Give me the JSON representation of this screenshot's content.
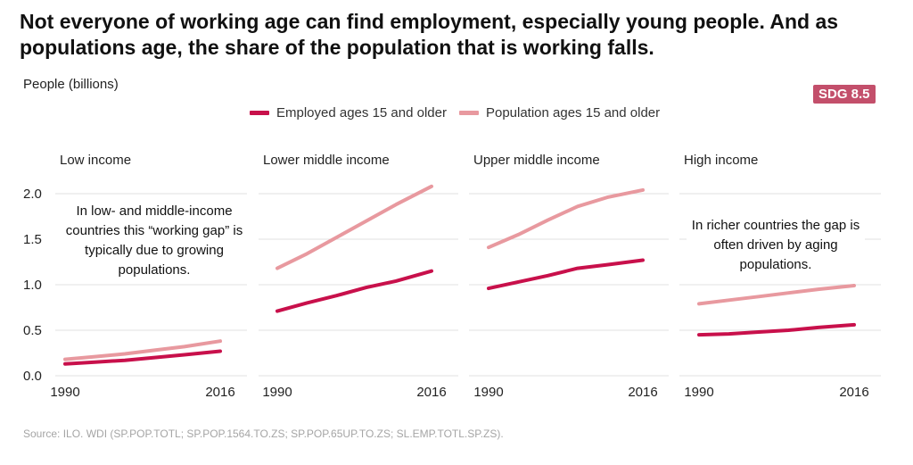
{
  "header": {
    "title": "Not everyone of working age can find employment, especially young people. And as populations age, the share of the population that is working falls.",
    "unit_label": "People (billions)",
    "badge": "SDG 8.5"
  },
  "colors": {
    "employed": "#c8104b",
    "population": "#e8999f",
    "grid": "#e0e0e0",
    "badge": "#c34f6b"
  },
  "source": "Source: ILO. WDI (SP.POP.TOTL; SP.POP.1564.TO.ZS; SP.POP.65UP.TO.ZS; SL.EMP.TOTL.SP.ZS).",
  "notes": {
    "left": "In low- and middle-income countries this “working gap” is typically due to growing populations.",
    "right": "In richer countries the gap is often driven by aging populations."
  },
  "chart_data": {
    "type": "line",
    "ylabel": "People (billions)",
    "ylim": [
      0,
      2.1
    ],
    "yticks": [
      "0.0",
      "0.5",
      "1.0",
      "1.5",
      "2.0"
    ],
    "xticks": [
      "1990",
      "2016"
    ],
    "legend": {
      "placement": "top",
      "series_names": [
        "Employed ages 15 and older",
        "Population ages 15 and older"
      ]
    },
    "grid": true,
    "panels": [
      {
        "title": "Low income",
        "x": [
          1990,
          1995,
          2000,
          2005,
          2010,
          2016
        ],
        "series": [
          {
            "name": "Employed ages 15 and older",
            "values": [
              0.13,
              0.15,
              0.17,
              0.2,
              0.23,
              0.27
            ]
          },
          {
            "name": "Population ages 15 and older",
            "values": [
              0.18,
              0.21,
              0.24,
              0.28,
              0.32,
              0.38
            ]
          }
        ]
      },
      {
        "title": "Lower middle income",
        "x": [
          1990,
          1995,
          2000,
          2005,
          2010,
          2016
        ],
        "series": [
          {
            "name": "Employed ages 15 and older",
            "values": [
              0.71,
              0.8,
              0.88,
              0.97,
              1.04,
              1.15
            ]
          },
          {
            "name": "Population ages 15 and older",
            "values": [
              1.18,
              1.34,
              1.52,
              1.7,
              1.88,
              2.08
            ]
          }
        ]
      },
      {
        "title": "Upper middle income",
        "x": [
          1990,
          1995,
          2000,
          2005,
          2010,
          2016
        ],
        "series": [
          {
            "name": "Employed ages 15 and older",
            "values": [
              0.96,
              1.03,
              1.1,
              1.18,
              1.22,
              1.27
            ]
          },
          {
            "name": "Population ages 15 and older",
            "values": [
              1.41,
              1.55,
              1.71,
              1.86,
              1.96,
              2.04
            ]
          }
        ]
      },
      {
        "title": "High income",
        "x": [
          1990,
          1995,
          2000,
          2005,
          2010,
          2016
        ],
        "series": [
          {
            "name": "Employed ages 15 and older",
            "values": [
              0.45,
              0.46,
              0.48,
              0.5,
              0.53,
              0.56
            ]
          },
          {
            "name": "Population ages 15 and older",
            "values": [
              0.79,
              0.83,
              0.87,
              0.91,
              0.95,
              0.99
            ]
          }
        ]
      }
    ]
  }
}
